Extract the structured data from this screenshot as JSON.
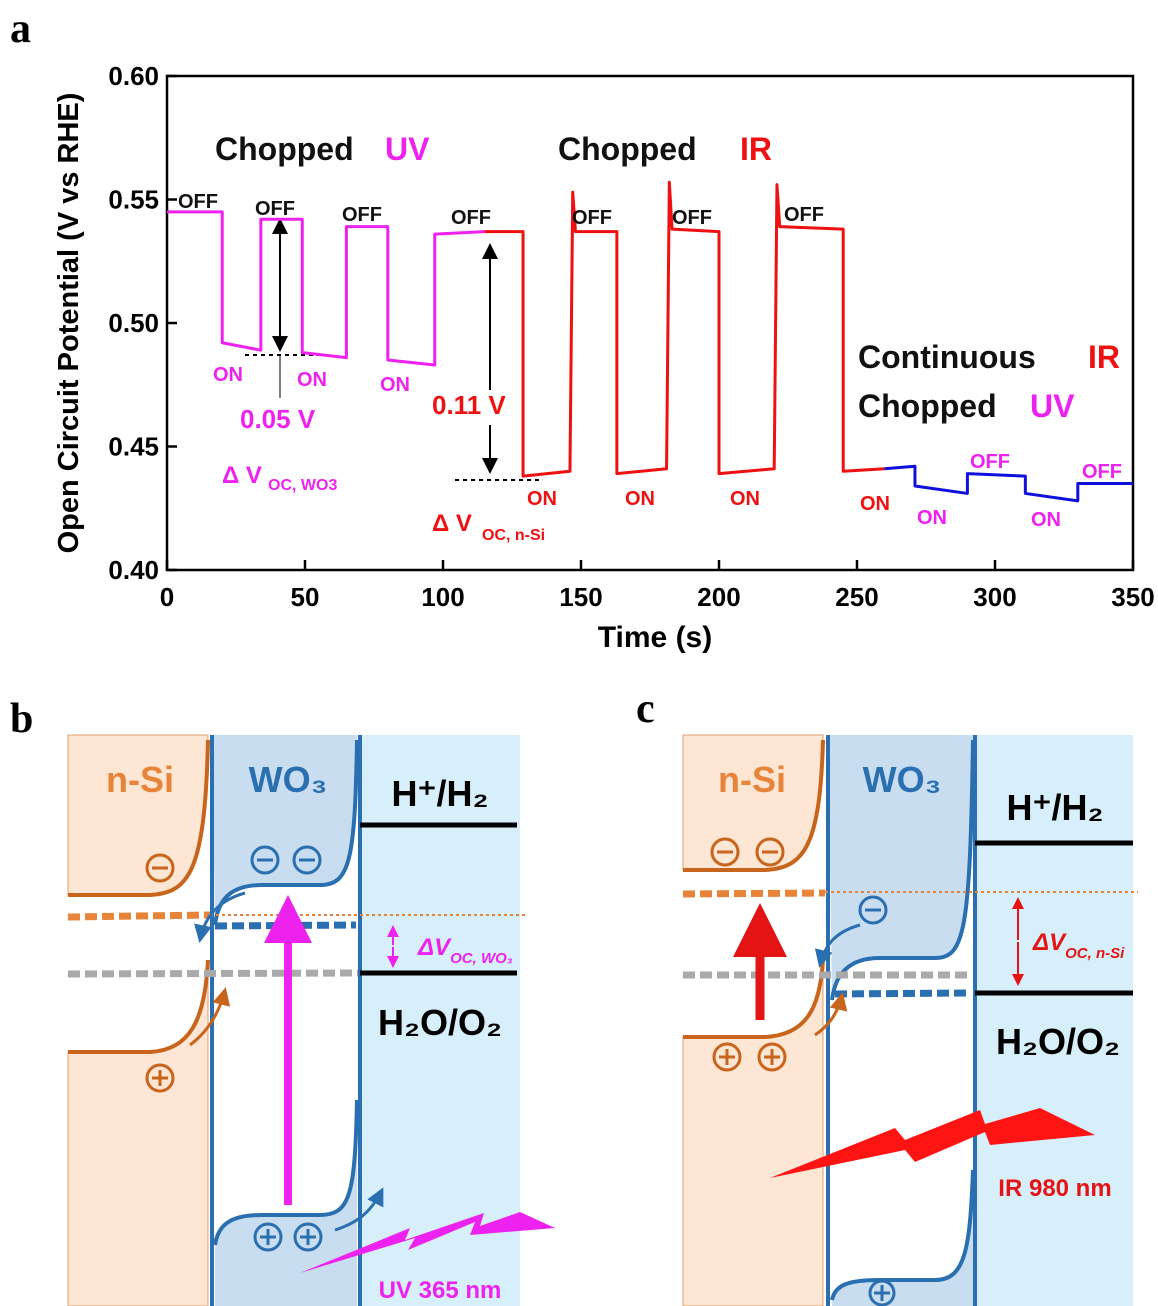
{
  "chart_data": {
    "type": "line",
    "panel": "a",
    "xlabel": "Time (s)",
    "ylabel": "Open Circuit Potential (V vs RHE)",
    "xlim": [
      0,
      350
    ],
    "ylim": [
      0.4,
      0.6
    ],
    "xticks": [
      0,
      50,
      100,
      150,
      200,
      250,
      300,
      350
    ],
    "yticks": [
      {
        "value": 0.4,
        "label": "0.40"
      },
      0.45,
      {
        "value": 0.5,
        "label": "0.50"
      },
      0.55,
      {
        "value": 0.6,
        "label": "0.60"
      }
    ],
    "series": [
      {
        "color": "#ee22ee",
        "x": [
          0,
          20,
          20,
          34,
          34,
          49,
          49,
          65,
          65,
          80,
          80,
          97,
          97,
          115
        ],
        "values": [
          0.545,
          0.545,
          0.492,
          0.489,
          0.542,
          0.542,
          0.488,
          0.486,
          0.539,
          0.539,
          0.485,
          0.483,
          0.536,
          0.537
        ]
      },
      {
        "color": "#ee1111",
        "x": [
          115,
          129,
          129,
          146,
          147,
          148,
          163,
          163,
          181,
          182,
          183,
          200,
          200,
          220,
          221,
          222,
          245,
          245,
          260
        ],
        "values": [
          0.537,
          0.537,
          0.438,
          0.44,
          0.553,
          0.537,
          0.537,
          0.439,
          0.441,
          0.557,
          0.538,
          0.537,
          0.439,
          0.441,
          0.556,
          0.539,
          0.538,
          0.44,
          0.441
        ]
      },
      {
        "color": "#1010dd",
        "x": [
          260,
          271,
          271,
          290,
          290,
          311,
          311,
          330,
          330,
          350
        ],
        "values": [
          0.441,
          0.442,
          0.434,
          0.431,
          0.439,
          0.438,
          0.431,
          0.428,
          0.435,
          0.435
        ]
      }
    ],
    "annotations": [
      {
        "text": "Chopped",
        "color": "#111"
      },
      {
        "text": "UV",
        "color": "#ee22ee"
      },
      {
        "text": "Chopped",
        "color": "#111"
      },
      {
        "text": "IR",
        "color": "#ee1111"
      },
      {
        "text": "Continuous",
        "color": "#111"
      },
      {
        "text": "IR",
        "color": "#ee1111"
      },
      {
        "text": "Chopped",
        "color": "#111"
      },
      {
        "text": "UV",
        "color": "#ee22ee"
      },
      {
        "text": "0.05 V",
        "color": "#ee22ee"
      },
      {
        "text": "0.11 V",
        "color": "#ee1111"
      },
      {
        "text": "Δ V",
        "color": "#ee22ee"
      },
      {
        "text": "OC, WO3",
        "color": "#ee22ee"
      },
      {
        "text": "Δ V",
        "color": "#ee1111"
      },
      {
        "text": "OC, n-Si",
        "color": "#ee1111"
      },
      {
        "text": "OFF",
        "color": "#111"
      },
      {
        "text": "OFF",
        "color": "#111"
      },
      {
        "text": "OFF",
        "color": "#111"
      },
      {
        "text": "OFF",
        "color": "#111"
      },
      {
        "text": "OFF",
        "color": "#111"
      },
      {
        "text": "OFF",
        "color": "#111"
      },
      {
        "text": "OFF",
        "color": "#111"
      },
      {
        "text": "OFF",
        "color": "#ee22ee"
      },
      {
        "text": "OFF",
        "color": "#ee22ee"
      },
      {
        "text": "ON",
        "color": "#ee22ee"
      },
      {
        "text": "ON",
        "color": "#ee22ee"
      },
      {
        "text": "ON",
        "color": "#ee22ee"
      },
      {
        "text": "ON",
        "color": "#ee1111"
      },
      {
        "text": "ON",
        "color": "#ee1111"
      },
      {
        "text": "ON",
        "color": "#ee1111"
      },
      {
        "text": "ON",
        "color": "#ee1111"
      },
      {
        "text": "ON",
        "color": "#ee22ee"
      },
      {
        "text": "ON",
        "color": "#ee22ee"
      }
    ]
  },
  "panel_b": {
    "label": "b",
    "n_si": "n-Si",
    "wo3": "WO₃",
    "redox_h": "H⁺/H₂",
    "delta_v": "ΔV",
    "delta_sub": "OC, WO₃",
    "redox_o": "H₂O/O₂",
    "light": "UV 365 nm"
  },
  "panel_c": {
    "label": "c",
    "n_si": "n-Si",
    "wo3": "WO₃",
    "redox_h": "H⁺/H₂",
    "delta_v": "ΔV",
    "delta_sub": "OC, n-Si",
    "redox_o": "H₂O/O₂",
    "light": "IR 980 nm"
  }
}
